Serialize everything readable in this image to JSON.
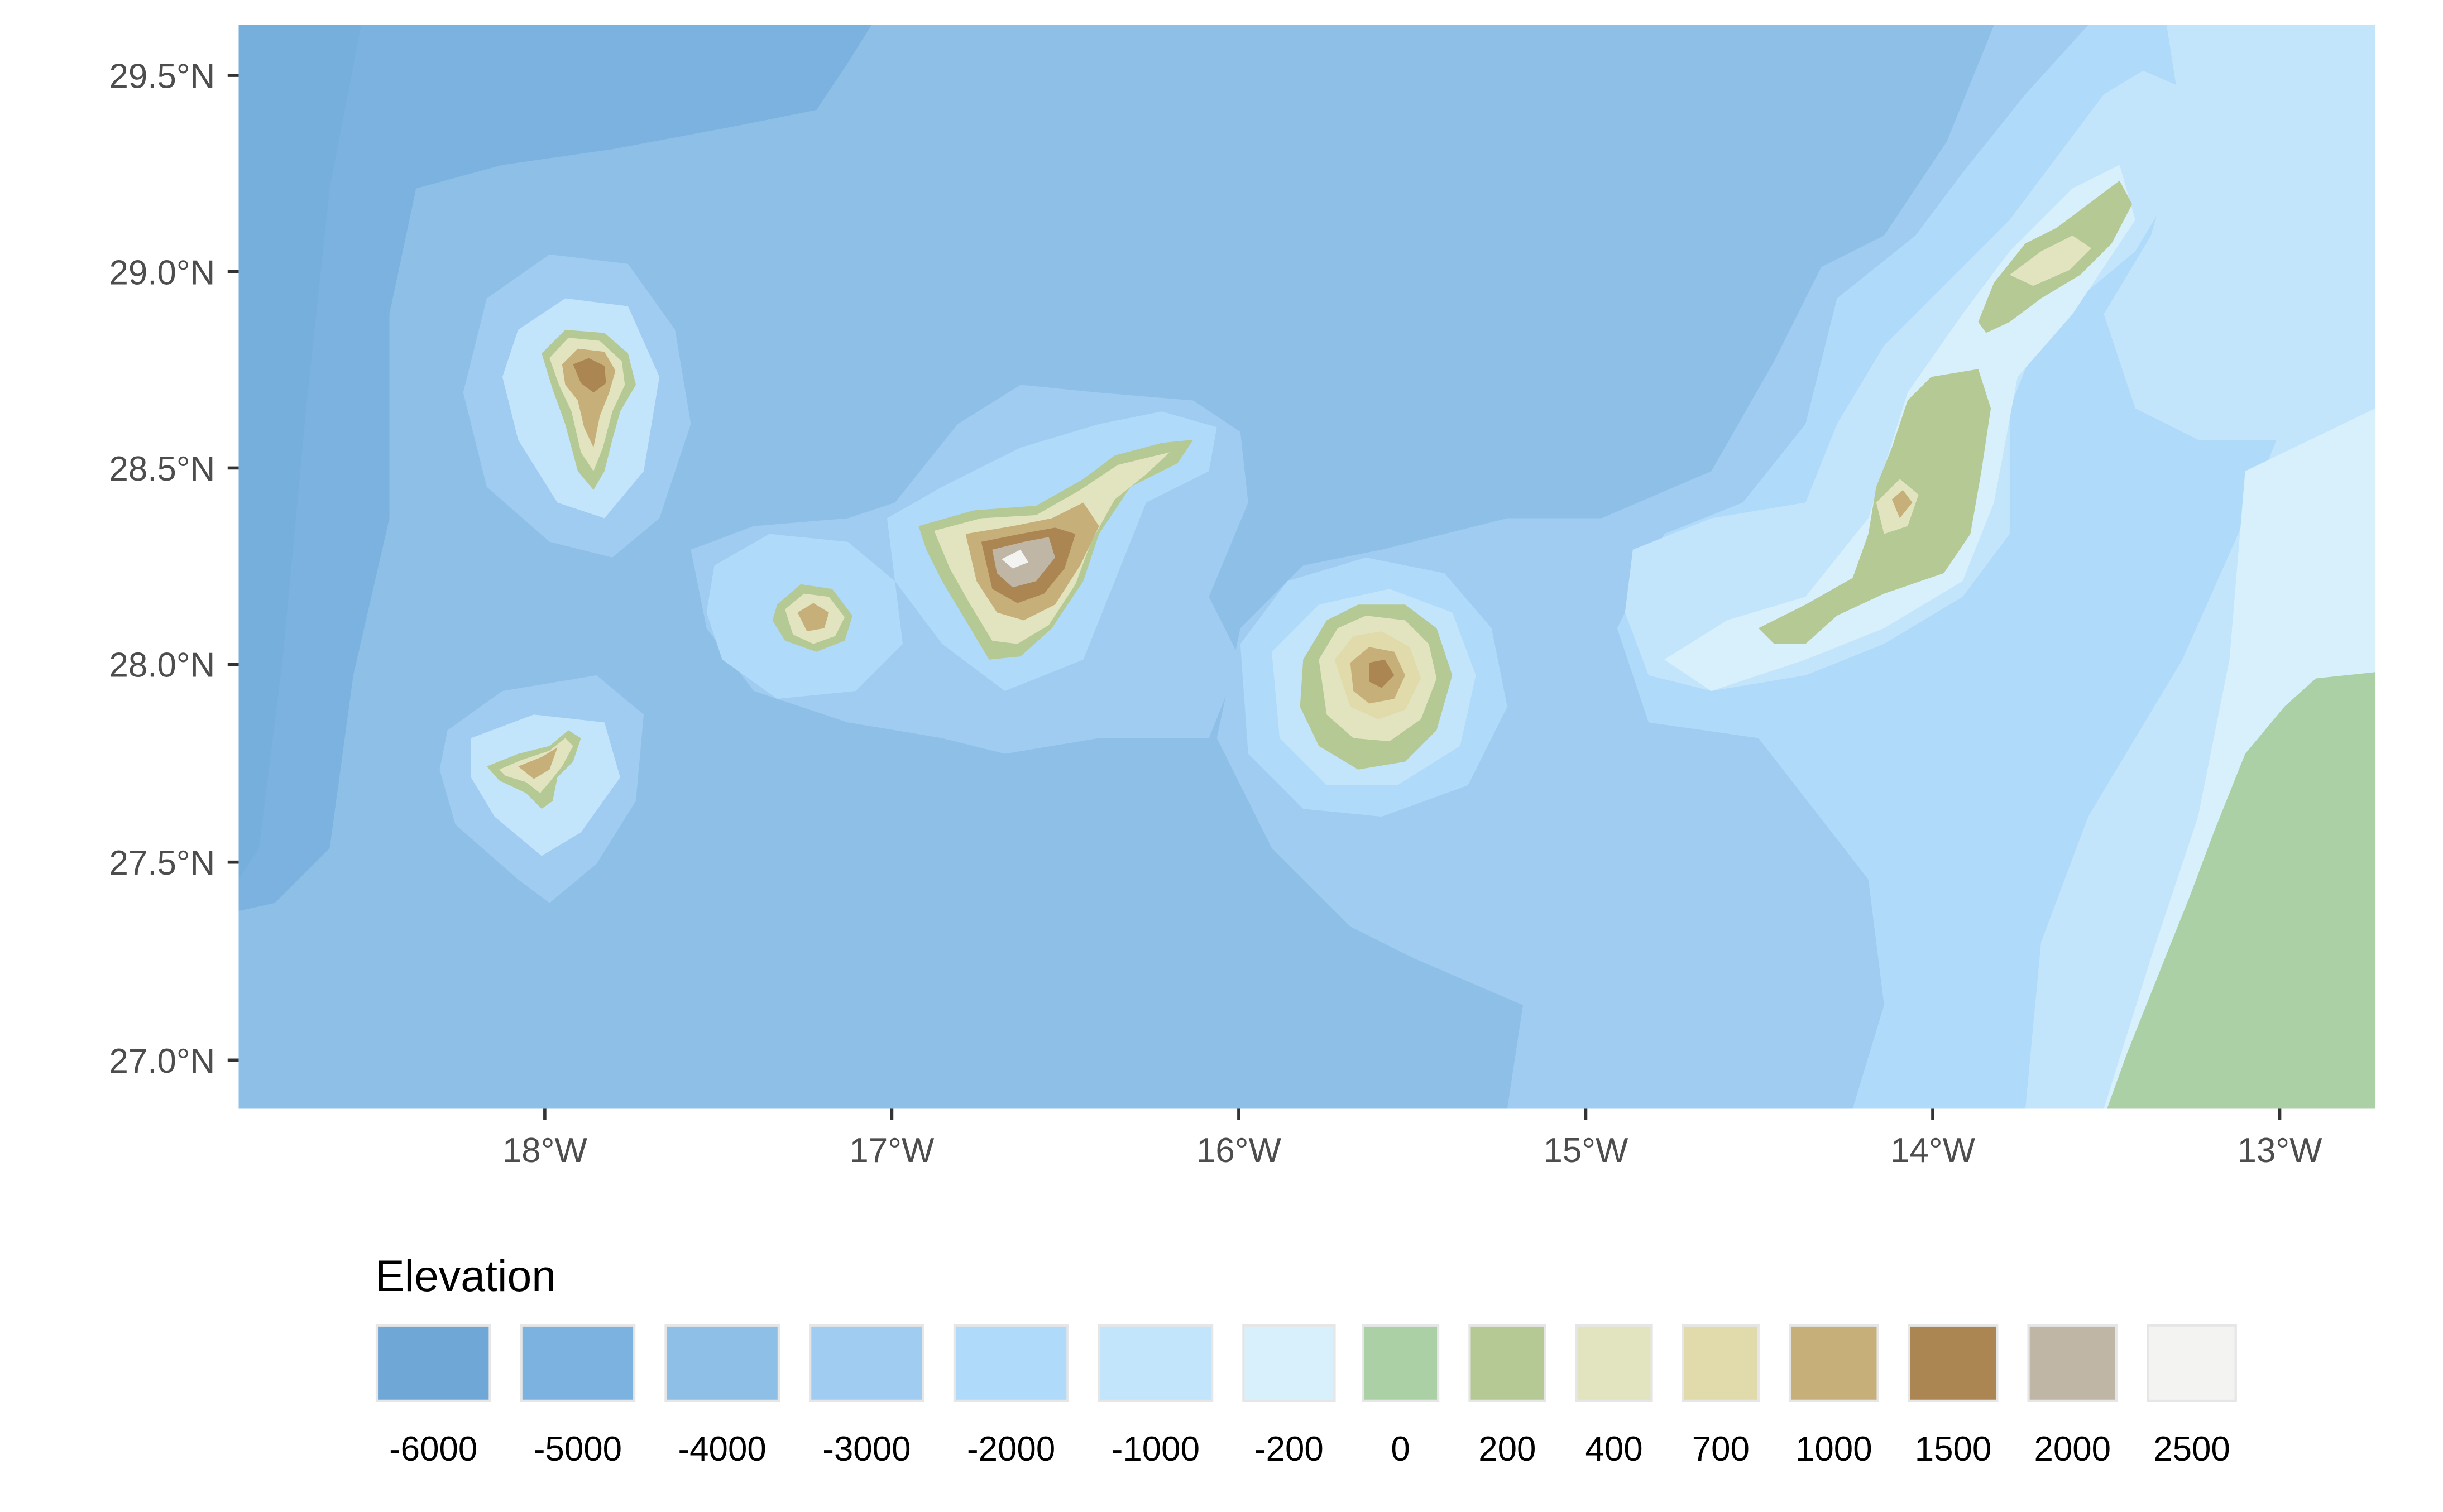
{
  "map": {
    "y_axis_labels": [
      "29.5°N",
      "29.0°N",
      "28.5°N",
      "28.0°N",
      "27.5°N",
      "27.0°N"
    ],
    "x_axis_labels": [
      "18°W",
      "17°W",
      "16°W",
      "15°W",
      "14°W",
      "13°W"
    ]
  },
  "legend": {
    "title": "Elevation",
    "items": [
      {
        "label": "-6000",
        "color": "#6FA8D6"
      },
      {
        "label": "-5000",
        "color": "#7BB2DF"
      },
      {
        "label": "-4000",
        "color": "#8DBFE7"
      },
      {
        "label": "-3000",
        "color": "#9FCCF0"
      },
      {
        "label": "-2000",
        "color": "#B0DAF9"
      },
      {
        "label": "-1000",
        "color": "#C3E5FC"
      },
      {
        "label": "-200",
        "color": "#D8F0FB"
      },
      {
        "label": "0",
        "color": "#ACD0A6"
      },
      {
        "label": "200",
        "color": "#B5C994"
      },
      {
        "label": "400",
        "color": "#E2E4C0"
      },
      {
        "label": "700",
        "color": "#E1DAAA"
      },
      {
        "label": "1000",
        "color": "#C7AF7A"
      },
      {
        "label": "1500",
        "color": "#AB8653"
      },
      {
        "label": "2000",
        "color": "#C0B6A6"
      },
      {
        "label": "2500",
        "color": "#F3F3F1"
      }
    ]
  }
}
